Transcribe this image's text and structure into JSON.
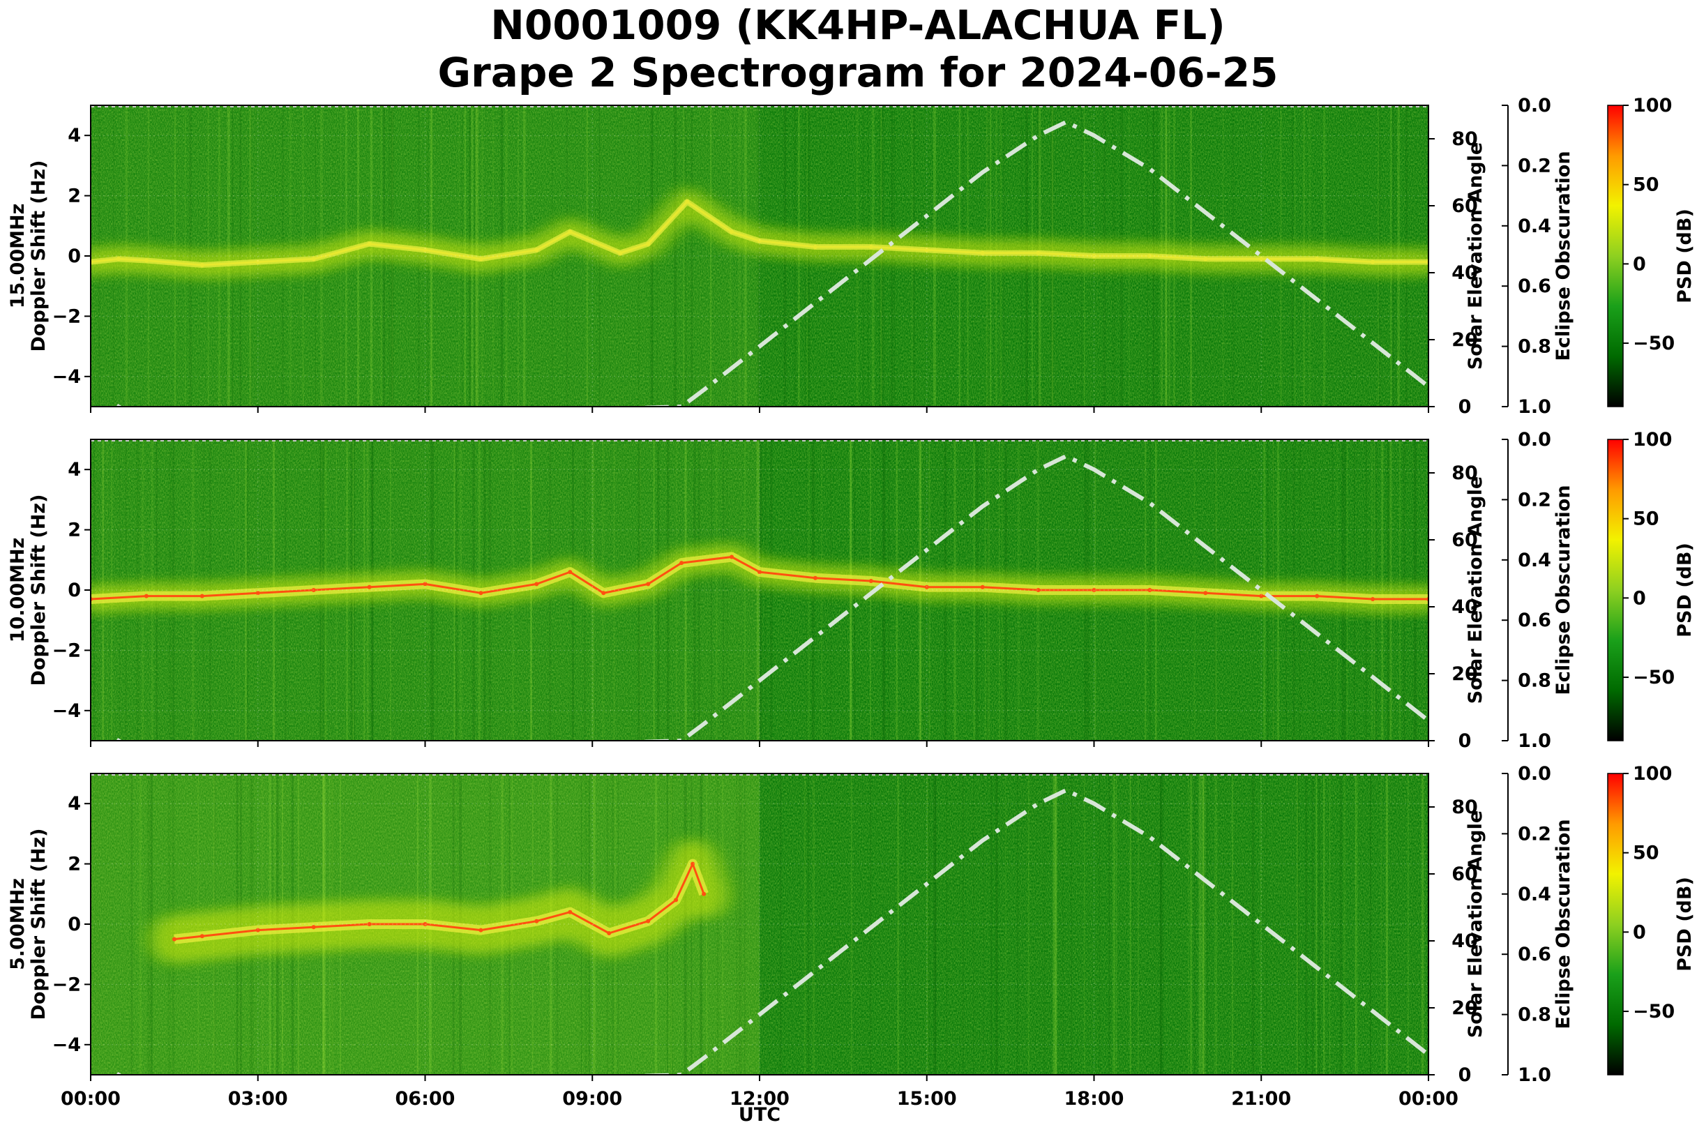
{
  "figure": {
    "title_line1": "N0001009 (KK4HP-ALACHUA FL)",
    "title_line2": "Grape 2 Spectrogram for 2024-06-25",
    "x_axis_label": "UTC",
    "x_tick_labels": [
      "00:00",
      "03:00",
      "06:00",
      "09:00",
      "12:00",
      "15:00",
      "18:00",
      "21:00",
      "00:00"
    ]
  },
  "chart_data": [
    {
      "type": "heatmap",
      "band": "15.00MHz",
      "ylabel_line1": "15.00MHz",
      "ylabel_line2": "Doppler Shift (Hz)",
      "ylim": [
        -5,
        5
      ],
      "y_ticks": [
        "4",
        "2",
        "0",
        "−2",
        "−4"
      ],
      "x_range_hours": [
        0,
        24
      ],
      "right_axis_label": "Solar Elevation Angle",
      "right_ylim": [
        0,
        90
      ],
      "right_ticks": [
        "80",
        "60",
        "40",
        "20",
        "0"
      ],
      "eclipse_axis_label": "Eclipse Obscuration",
      "eclipse_ylim": [
        0,
        1
      ],
      "eclipse_ticks": [
        "0.0",
        "0.2",
        "0.4",
        "0.6",
        "0.8",
        "1.0"
      ],
      "colorbar_label": "PSD (dB)",
      "colorbar_range": [
        -90,
        100
      ],
      "colorbar_ticks": [
        "100",
        "50",
        "0",
        "−50"
      ],
      "doppler_trace_hz": [
        [
          0,
          -0.2
        ],
        [
          0.5,
          -0.1
        ],
        [
          1,
          -0.15
        ],
        [
          2,
          -0.3
        ],
        [
          3,
          -0.2
        ],
        [
          4,
          -0.1
        ],
        [
          5,
          0.4
        ],
        [
          6,
          0.2
        ],
        [
          7,
          -0.1
        ],
        [
          8,
          0.2
        ],
        [
          8.6,
          0.8
        ],
        [
          9.5,
          0.1
        ],
        [
          10,
          0.4
        ],
        [
          10.7,
          1.8
        ],
        [
          11.5,
          0.8
        ],
        [
          12,
          0.5
        ],
        [
          13,
          0.3
        ],
        [
          14,
          0.3
        ],
        [
          15,
          0.2
        ],
        [
          16,
          0.1
        ],
        [
          17,
          0.1
        ],
        [
          18,
          0.0
        ],
        [
          19,
          0.0
        ],
        [
          20,
          -0.1
        ],
        [
          21,
          -0.1
        ],
        [
          22,
          -0.1
        ],
        [
          23,
          -0.2
        ],
        [
          24,
          -0.2
        ]
      ]
    },
    {
      "type": "heatmap",
      "band": "10.00MHz",
      "ylabel_line1": "10.00MHz",
      "ylabel_line2": "Doppler Shift (Hz)",
      "ylim": [
        -5,
        5
      ],
      "y_ticks": [
        "4",
        "2",
        "0",
        "−2",
        "−4"
      ],
      "x_range_hours": [
        0,
        24
      ],
      "right_axis_label": "Solar Elevation Angle",
      "right_ylim": [
        0,
        90
      ],
      "right_ticks": [
        "80",
        "60",
        "40",
        "20",
        "0"
      ],
      "eclipse_axis_label": "Eclipse Obscuration",
      "eclipse_ylim": [
        0,
        1
      ],
      "eclipse_ticks": [
        "0.0",
        "0.2",
        "0.4",
        "0.6",
        "0.8",
        "1.0"
      ],
      "colorbar_label": "PSD (dB)",
      "colorbar_range": [
        -90,
        100
      ],
      "colorbar_ticks": [
        "100",
        "50",
        "0",
        "−50"
      ],
      "doppler_trace_hz": [
        [
          0,
          -0.3
        ],
        [
          1,
          -0.2
        ],
        [
          2,
          -0.2
        ],
        [
          3,
          -0.1
        ],
        [
          4,
          0.0
        ],
        [
          5,
          0.1
        ],
        [
          6,
          0.2
        ],
        [
          7,
          -0.1
        ],
        [
          8,
          0.2
        ],
        [
          8.6,
          0.6
        ],
        [
          9.2,
          -0.1
        ],
        [
          10,
          0.2
        ],
        [
          10.6,
          0.9
        ],
        [
          11.5,
          1.1
        ],
        [
          12,
          0.6
        ],
        [
          13,
          0.4
        ],
        [
          14,
          0.3
        ],
        [
          15,
          0.1
        ],
        [
          16,
          0.1
        ],
        [
          17,
          0.0
        ],
        [
          18,
          0.0
        ],
        [
          19,
          0.0
        ],
        [
          20,
          -0.1
        ],
        [
          21,
          -0.2
        ],
        [
          22,
          -0.2
        ],
        [
          23,
          -0.3
        ],
        [
          24,
          -0.3
        ]
      ]
    },
    {
      "type": "heatmap",
      "band": "5.00MHz",
      "ylabel_line1": "5.00MHz",
      "ylabel_line2": "Doppler Shift (Hz)",
      "ylim": [
        -5,
        5
      ],
      "y_ticks": [
        "4",
        "2",
        "0",
        "−2",
        "−4"
      ],
      "x_range_hours": [
        0,
        24
      ],
      "right_axis_label": "Solar Elevation Angle",
      "right_ylim": [
        0,
        90
      ],
      "right_ticks": [
        "80",
        "60",
        "40",
        "20",
        "0"
      ],
      "eclipse_axis_label": "Eclipse Obscuration",
      "eclipse_ylim": [
        0,
        1
      ],
      "eclipse_ticks": [
        "0.0",
        "0.2",
        "0.4",
        "0.6",
        "0.8",
        "1.0"
      ],
      "colorbar_label": "PSD (dB)",
      "colorbar_range": [
        -90,
        100
      ],
      "colorbar_ticks": [
        "100",
        "50",
        "0",
        "−50"
      ],
      "doppler_trace_hz": [
        [
          1.5,
          -0.5
        ],
        [
          2,
          -0.4
        ],
        [
          3,
          -0.2
        ],
        [
          4,
          -0.1
        ],
        [
          5,
          0.0
        ],
        [
          6,
          0.0
        ],
        [
          7,
          -0.2
        ],
        [
          8,
          0.1
        ],
        [
          8.6,
          0.4
        ],
        [
          9.3,
          -0.3
        ],
        [
          10,
          0.1
        ],
        [
          10.5,
          0.8
        ],
        [
          10.8,
          2.0
        ],
        [
          11,
          1.0
        ]
      ]
    }
  ],
  "solar_elevation_deg": [
    [
      0,
      -12
    ],
    [
      0.5,
      0
    ],
    [
      1,
      -5
    ],
    [
      10.6,
      0
    ],
    [
      11,
      5
    ],
    [
      12,
      18
    ],
    [
      13,
      31
    ],
    [
      14,
      44
    ],
    [
      15,
      57
    ],
    [
      16,
      70
    ],
    [
      17,
      81
    ],
    [
      17.5,
      85
    ],
    [
      18,
      81
    ],
    [
      19,
      71
    ],
    [
      20,
      58
    ],
    [
      21,
      45
    ],
    [
      22,
      32
    ],
    [
      23,
      19
    ],
    [
      24,
      6
    ]
  ],
  "colors": {
    "spectrogram_background": "#0a7a0a",
    "doppler_trace": "#e8e830",
    "doppler_trace_strong": "#ff5010",
    "solar_elevation_line": "#d8e6d8",
    "colormap": [
      "#000000",
      "#006a00",
      "#1aa01a",
      "#8ed020",
      "#f2f200",
      "#ff9a00",
      "#ff0000"
    ]
  }
}
